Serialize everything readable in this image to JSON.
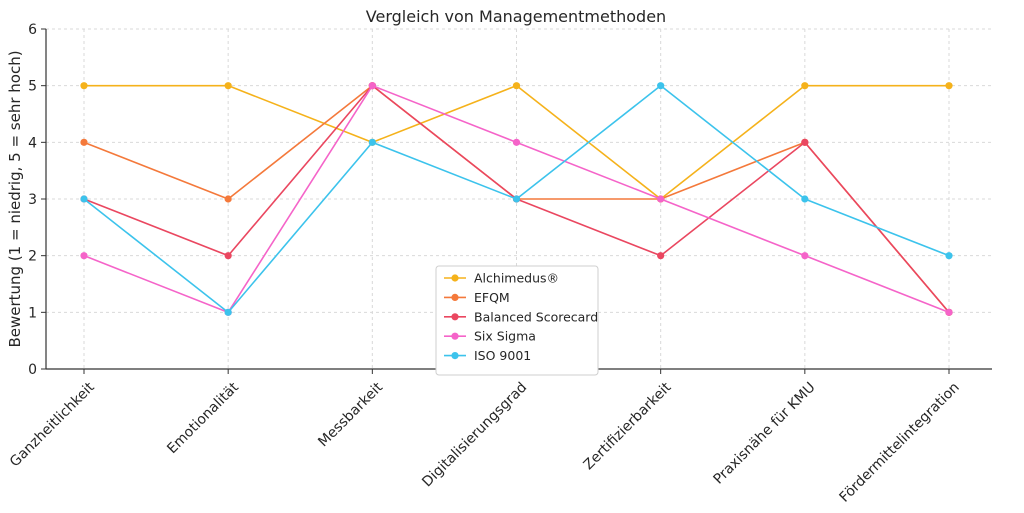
{
  "chart_data": {
    "type": "line",
    "title": "Vergleich von Managementmethoden",
    "xlabel": "",
    "ylabel": "Bewertung (1 = niedrig, 5 = sehr hoch)",
    "categories": [
      "Ganzheitlichkeit",
      "Emotionalität",
      "Messbarkeit",
      "Digitalisierungsgrad",
      "Zertifizierbarkeit",
      "Praxisnähe für KMU",
      "Fördermittelintegration"
    ],
    "ylim": [
      0,
      6
    ],
    "yticks": [
      "0",
      "1",
      "2",
      "3",
      "4",
      "5",
      "6"
    ],
    "grid": true,
    "legend_position": "lower-center",
    "series": [
      {
        "name": "Alchimedus®",
        "color": "#f5b21b",
        "values": [
          5,
          5,
          4,
          5,
          3,
          5,
          5
        ]
      },
      {
        "name": "EFQM",
        "color": "#f4793b",
        "values": [
          4,
          3,
          5,
          3,
          3,
          4,
          1
        ]
      },
      {
        "name": "Balanced Scorecard",
        "color": "#ea4760",
        "values": [
          3,
          2,
          5,
          3,
          2,
          4,
          1
        ]
      },
      {
        "name": "Six Sigma",
        "color": "#f564c9",
        "values": [
          2,
          1,
          5,
          4,
          3,
          2,
          1
        ]
      },
      {
        "name": "ISO 9001",
        "color": "#3cc3ec",
        "values": [
          3,
          1,
          4,
          3,
          5,
          3,
          2
        ]
      }
    ]
  }
}
